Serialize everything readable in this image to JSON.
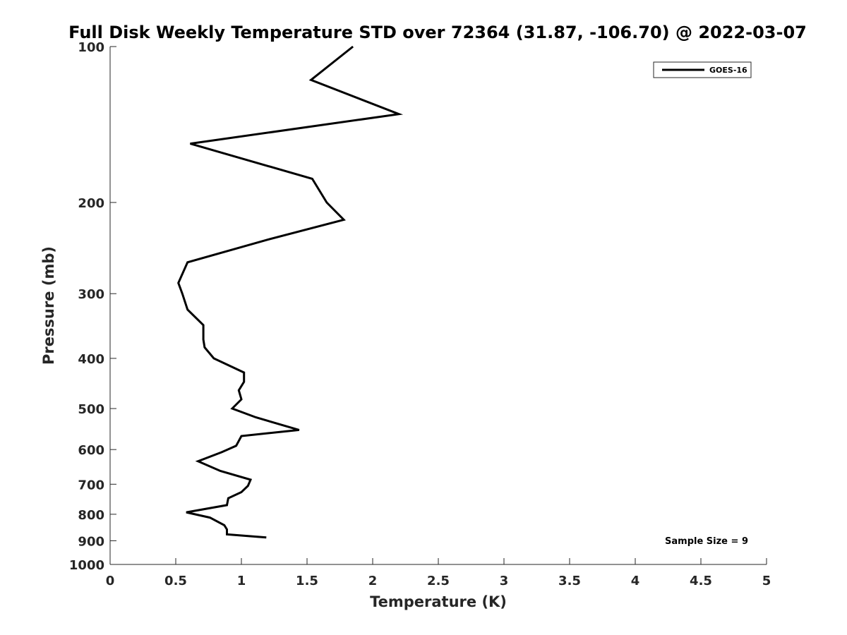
{
  "chart_data": {
    "type": "line",
    "title": "Full Disk Weekly Temperature STD over 72364 (31.87, -106.70) @ 2022-03-07",
    "xlabel": "Temperature (K)",
    "ylabel": "Pressure (mb)",
    "xlim": [
      0,
      5
    ],
    "ylim": [
      100,
      1000
    ],
    "y_scale": "log",
    "y_reversed": true,
    "grid": false,
    "x_ticks": [
      "0",
      "0.5",
      "1",
      "1.5",
      "2",
      "2.5",
      "3",
      "3.5",
      "4",
      "4.5",
      "5"
    ],
    "y_ticks": [
      "100",
      "200",
      "300",
      "400",
      "500",
      "600",
      "700",
      "800",
      "900",
      "1000"
    ],
    "legend": {
      "entries": [
        "GOES-16"
      ],
      "location": "top-right"
    },
    "annotation": "Sample Size = 9",
    "series": [
      {
        "name": "GOES-16",
        "color": "#000000",
        "points": [
          [
            1.85,
            100
          ],
          [
            1.53,
            116
          ],
          [
            2.2,
            135
          ],
          [
            0.61,
            154
          ],
          [
            1.54,
            180
          ],
          [
            1.65,
            200
          ],
          [
            1.78,
            216
          ],
          [
            1.2,
            236
          ],
          [
            0.59,
            261
          ],
          [
            0.52,
            286
          ],
          [
            0.55,
            300
          ],
          [
            0.59,
            322
          ],
          [
            0.71,
            345
          ],
          [
            0.71,
            368
          ],
          [
            0.72,
            381
          ],
          [
            0.79,
            400
          ],
          [
            1.02,
            426
          ],
          [
            1.02,
            444
          ],
          [
            0.98,
            461
          ],
          [
            1.0,
            480
          ],
          [
            0.93,
            500
          ],
          [
            1.11,
            520
          ],
          [
            1.44,
            550
          ],
          [
            1.0,
            565
          ],
          [
            0.96,
            590
          ],
          [
            0.85,
            607
          ],
          [
            0.67,
            632
          ],
          [
            0.84,
            660
          ],
          [
            1.07,
            686
          ],
          [
            1.05,
            705
          ],
          [
            1.0,
            725
          ],
          [
            0.9,
            745
          ],
          [
            0.89,
            768
          ],
          [
            0.58,
            793
          ],
          [
            0.76,
            812
          ],
          [
            0.87,
            840
          ],
          [
            0.89,
            856
          ],
          [
            0.89,
            875
          ],
          [
            1.19,
            887
          ]
        ]
      }
    ]
  }
}
